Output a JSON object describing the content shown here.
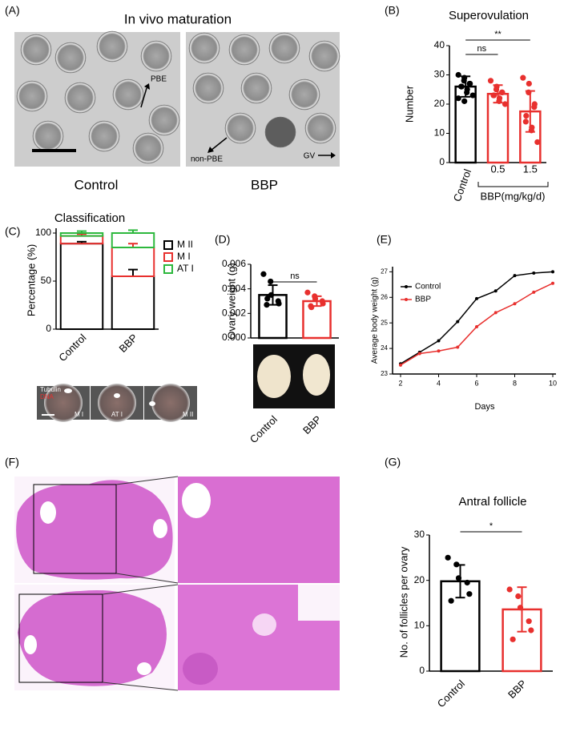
{
  "panel_labels": [
    "(A)",
    "(B)",
    "(C)",
    "(D)",
    "(E)",
    "(F)",
    "(G)"
  ],
  "panel_a": {
    "title": "In vivo maturation",
    "arrows": [
      "PBE",
      "non-PBE",
      "GV"
    ],
    "captions": [
      "Control",
      "BBP"
    ]
  },
  "panel_c_image": {
    "stains": [
      "Tubulin",
      "DNA"
    ],
    "stages": [
      "M I",
      "AT I",
      "M II"
    ]
  },
  "chart_data": [
    {
      "type": "bar",
      "title": "Superovulation",
      "y_label": "Number",
      "categories": [
        "Control",
        "0.5",
        "1.5"
      ],
      "group_label": "BBP(mg/kg/d)",
      "values": [
        26,
        23.5,
        17.5
      ],
      "errors": [
        3.5,
        3,
        7
      ],
      "points": [
        [
          30,
          29,
          28,
          27,
          27,
          26,
          26,
          25,
          24,
          23,
          22,
          21
        ],
        [
          28,
          26,
          25,
          24,
          24,
          23,
          23,
          22,
          21,
          20
        ],
        [
          29,
          27,
          24,
          20,
          19,
          16,
          14,
          12,
          11,
          7
        ]
      ],
      "colors": [
        "#000000",
        "#e8302e",
        "#e8302e"
      ],
      "ylim": [
        0,
        40
      ],
      "yticks": [
        0,
        10,
        20,
        30,
        40
      ],
      "annotations": [
        "ns",
        "**"
      ]
    },
    {
      "type": "stacked_bar",
      "title": "Classification",
      "y_label": "Percentage (%)",
      "categories": [
        "Control",
        "BBP"
      ],
      "series": [
        {
          "name": "M II",
          "color": "#000000",
          "values": [
            89,
            55
          ],
          "errors": [
            2,
            7
          ]
        },
        {
          "name": "M I",
          "color": "#e8302e",
          "values": [
            8,
            30
          ],
          "errors": [
            2,
            4
          ]
        },
        {
          "name": "AT I",
          "color": "#2db83d",
          "values": [
            3,
            15
          ],
          "errors": [
            2,
            3
          ]
        }
      ],
      "ylim": [
        0,
        105
      ],
      "yticks": [
        0,
        50,
        100
      ]
    },
    {
      "type": "bar",
      "y_label": "Ovary weight (g)",
      "categories": [
        "Control",
        "BBP"
      ],
      "values": [
        0.0035,
        0.003
      ],
      "errors": [
        0.0008,
        0.0004
      ],
      "points": [
        [
          0.0052,
          0.0046,
          0.0035,
          0.003,
          0.0028,
          0.0027,
          0.0032
        ],
        [
          0.0037,
          0.0034,
          0.0032,
          0.003,
          0.0028,
          0.0026,
          0.0025
        ]
      ],
      "colors": [
        "#000000",
        "#e8302e"
      ],
      "ylim": [
        0,
        0.006
      ],
      "yticks": [
        {
          "value": 0,
          "label": "0.000"
        },
        {
          "value": 0.002,
          "label": "0.002"
        },
        {
          "value": 0.004,
          "label": "0.004"
        },
        {
          "value": 0.006,
          "label": "0.006"
        }
      ],
      "annotations": [
        "ns"
      ]
    },
    {
      "type": "line",
      "y_label": "Average body weight (g)",
      "x_label": "Days",
      "x": [
        2,
        3,
        4,
        5,
        6,
        7,
        8,
        9,
        10
      ],
      "series": [
        {
          "name": "Control",
          "color": "#000000",
          "values": [
            23.4,
            23.85,
            24.3,
            25.05,
            25.95,
            26.25,
            26.85,
            26.95,
            27.0
          ]
        },
        {
          "name": "BBP",
          "color": "#e8302e",
          "values": [
            23.35,
            23.8,
            23.9,
            24.05,
            24.85,
            25.4,
            25.75,
            26.2,
            26.55
          ]
        }
      ],
      "xlim": [
        2,
        10
      ],
      "xticks": [
        2,
        4,
        6,
        8,
        10
      ],
      "ylim": [
        23,
        27.2
      ],
      "yticks": [
        23,
        24,
        25,
        26,
        27
      ]
    },
    {
      "type": "bar",
      "title": "Antral follicle",
      "y_label": "No. of follicles per ovary",
      "categories": [
        "Control",
        "BBP"
      ],
      "values": [
        19.8,
        13.6
      ],
      "errors": [
        3.6,
        4.9
      ],
      "points": [
        [
          25,
          23.5,
          20.5,
          19.5,
          17,
          15.5
        ],
        [
          18,
          16.5,
          14,
          11,
          9,
          7
        ]
      ],
      "colors": [
        "#000000",
        "#e8302e"
      ],
      "ylim": [
        0,
        30
      ],
      "yticks": [
        0,
        10,
        20,
        30
      ],
      "annotations": [
        "*"
      ]
    }
  ]
}
